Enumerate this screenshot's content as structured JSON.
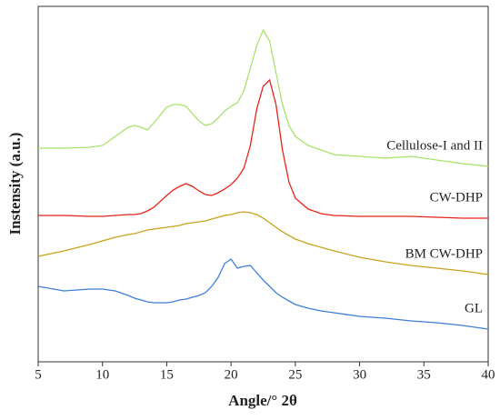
{
  "chart_data": {
    "type": "line",
    "xlabel": "Angle/°  2θ",
    "ylabel": "Instensity (a.u.)",
    "xlim": [
      5,
      40
    ],
    "xticks": [
      5,
      10,
      15,
      20,
      25,
      30,
      35,
      40
    ],
    "ylim": [
      0,
      391
    ],
    "x": [
      5,
      7,
      9,
      10,
      11,
      12,
      12.5,
      13,
      13.5,
      14,
      15,
      15.5,
      16,
      16.5,
      17,
      17.5,
      18,
      18.5,
      19,
      19.5,
      20,
      20.5,
      21,
      21.5,
      22,
      22.5,
      23,
      23.5,
      24,
      24.5,
      25,
      26,
      27,
      28,
      30,
      32,
      34,
      36,
      38,
      40
    ],
    "series": [
      {
        "name": "Cellulose-I and II",
        "color": "#a8e36c",
        "values": [
          235,
          235,
          236,
          238,
          248,
          258,
          260,
          258,
          255,
          263,
          280,
          283,
          283,
          281,
          273,
          265,
          260,
          262,
          268,
          276,
          281,
          285,
          298,
          323,
          348,
          365,
          353,
          318,
          283,
          260,
          248,
          238,
          233,
          228,
          226,
          224,
          226,
          222,
          218,
          215
        ]
      },
      {
        "name": "CW-DHP",
        "color": "#e8231b",
        "values": [
          161,
          161,
          160,
          160,
          161,
          162,
          162,
          163,
          166,
          170,
          183,
          189,
          193,
          196,
          193,
          188,
          184,
          183,
          186,
          190,
          195,
          202,
          213,
          238,
          278,
          303,
          310,
          283,
          233,
          198,
          180,
          168,
          163,
          161,
          160,
          160,
          160,
          159,
          158,
          158
        ]
      },
      {
        "name": "BM CW-DHP",
        "color": "#c9a21b",
        "values": [
          116,
          122,
          129,
          133,
          137,
          140,
          141,
          143,
          145,
          146,
          148,
          149,
          150,
          152,
          153,
          154,
          155,
          157,
          159,
          161,
          162,
          164,
          165,
          164,
          162,
          158,
          153,
          148,
          143,
          139,
          135,
          130,
          126,
          122,
          115,
          110,
          106,
          103,
          100,
          96
        ]
      },
      {
        "name": "GL",
        "color": "#3d7fd6",
        "values": [
          83,
          78,
          80,
          80,
          78,
          73,
          70,
          68,
          66,
          65,
          65,
          66,
          68,
          69,
          71,
          73,
          76,
          83,
          93,
          108,
          113,
          103,
          105,
          106,
          98,
          90,
          83,
          76,
          71,
          67,
          63,
          59,
          56,
          54,
          50,
          48,
          45,
          43,
          40,
          36
        ]
      }
    ]
  }
}
